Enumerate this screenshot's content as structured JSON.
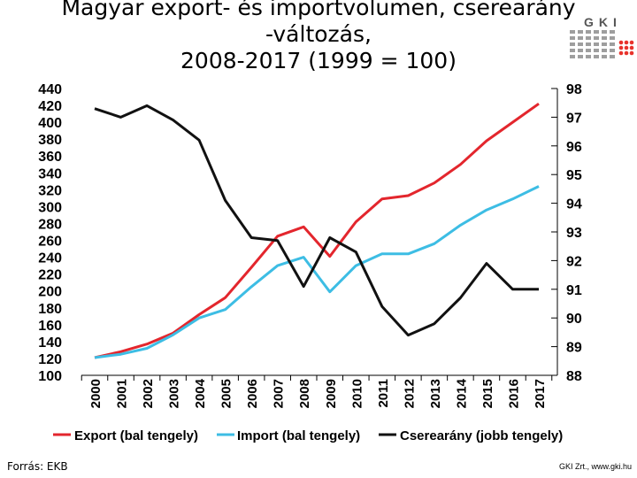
{
  "header": {
    "title_line1": "Magyar export- és importvolumen, cserearány",
    "title_line2": "-változás,",
    "title_line3_bold": "2008-2017",
    "title_line3_rest": " (1999 = 100)"
  },
  "logo": {
    "text": "GKI",
    "colors": {
      "grid": "#9e9e9e",
      "dots": "#e8322b"
    }
  },
  "footer": {
    "source": "Forrás: EKB",
    "credit": "GKI Zrt., www.gki.hu"
  },
  "colors": {
    "export": "#e3262d",
    "import": "#3dbde4",
    "terms": "#111111"
  },
  "chart_data": {
    "type": "line",
    "x": [
      "2000",
      "2001",
      "2002",
      "2003",
      "2004",
      "2005",
      "2006",
      "2007",
      "2008",
      "2009",
      "2010",
      "2011",
      "2012",
      "2013",
      "2014",
      "2015",
      "2016",
      "2017"
    ],
    "left_axis": {
      "min": 100,
      "max": 440,
      "ticks": [
        "440",
        "420",
        "400",
        "380",
        "360",
        "340",
        "320",
        "300",
        "280",
        "260",
        "240",
        "220",
        "200",
        "180",
        "160",
        "140",
        "120",
        "100"
      ]
    },
    "right_axis": {
      "min": 88,
      "max": 98,
      "ticks": [
        "98",
        "97",
        "96",
        "95",
        "94",
        "93",
        "92",
        "91",
        "90",
        "89",
        "88"
      ]
    },
    "series": [
      {
        "name": "Export (bal tengely)",
        "axis": "left",
        "values": [
          121,
          128,
          137,
          150,
          172,
          192,
          228,
          265,
          276,
          241,
          282,
          309,
          313,
          328,
          350,
          378,
          400,
          422
        ]
      },
      {
        "name": "Import (bal tengely)",
        "axis": "left",
        "values": [
          121,
          125,
          132,
          148,
          168,
          178,
          205,
          230,
          240,
          199,
          230,
          244,
          244,
          256,
          278,
          296,
          309,
          324
        ]
      },
      {
        "name": "Cserearány (jobb tengely)",
        "axis": "right",
        "values": [
          97.3,
          97.0,
          97.4,
          96.9,
          96.2,
          94.1,
          92.8,
          92.7,
          91.1,
          92.8,
          92.3,
          90.4,
          89.4,
          89.8,
          90.7,
          91.9,
          91.0,
          91.0
        ]
      }
    ],
    "legend_position": "bottom"
  }
}
